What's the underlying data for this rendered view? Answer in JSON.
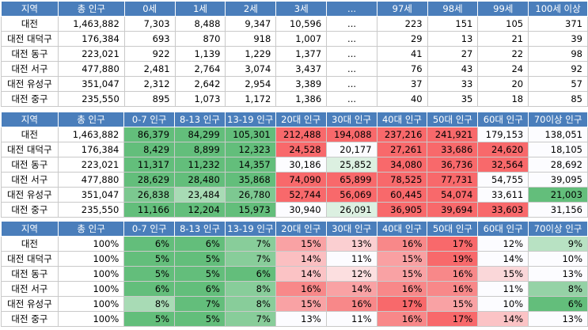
{
  "tables": [
    {
      "headers": [
        "지역",
        "총 인구",
        "0세",
        "1세",
        "2세",
        "3세",
        "...",
        "97세",
        "98세",
        "99세",
        "100세 이상"
      ],
      "rows": [
        [
          "대전",
          "1,463,882",
          "7,303",
          "8,488",
          "9,347",
          "10,596",
          "...",
          "223",
          "151",
          "105",
          "371"
        ],
        [
          "대전 대덕구",
          "176,384",
          "693",
          "870",
          "918",
          "1,007",
          "...",
          "29",
          "13",
          "21",
          "39"
        ],
        [
          "대전 동구",
          "223,021",
          "922",
          "1,139",
          "1,229",
          "1,377",
          "...",
          "41",
          "27",
          "22",
          "98"
        ],
        [
          "대전 서구",
          "477,880",
          "2,481",
          "2,764",
          "3,074",
          "3,437",
          "...",
          "76",
          "43",
          "24",
          "92"
        ],
        [
          "대전 유성구",
          "351,047",
          "2,312",
          "2,642",
          "2,954",
          "3,389",
          "...",
          "37",
          "33",
          "20",
          "57"
        ],
        [
          "대전 중구",
          "235,550",
          "895",
          "1,073",
          "1,172",
          "1,386",
          "...",
          "40",
          "35",
          "18",
          "85"
        ]
      ]
    },
    {
      "headers": [
        "지역",
        "총 인구",
        "0-7 인구",
        "8-13 인구",
        "13-19 인구",
        "20대 인구",
        "30대 인구",
        "40대 인구",
        "50대 인구",
        "60대 인구",
        "70이상 인구"
      ],
      "rows": [
        [
          "대전",
          "1,463,882",
          "86,379",
          "84,299",
          "105,301",
          "212,488",
          "194,088",
          "237,216",
          "241,921",
          "179,153",
          "138,051"
        ],
        [
          "대전 대덕구",
          "176,384",
          "8,429",
          "8,899",
          "12,323",
          "24,528",
          "20,177",
          "27,261",
          "33,686",
          "24,620",
          "18,105"
        ],
        [
          "대전 동구",
          "223,021",
          "11,317",
          "11,232",
          "14,357",
          "30,186",
          "25,852",
          "34,080",
          "36,736",
          "32,564",
          "28,692"
        ],
        [
          "대전 서구",
          "477,880",
          "28,629",
          "28,480",
          "35,868",
          "74,090",
          "65,899",
          "78,525",
          "77,731",
          "54,755",
          "39,095"
        ],
        [
          "대전 유성구",
          "351,047",
          "26,838",
          "23,484",
          "26,780",
          "52,744",
          "56,069",
          "60,445",
          "54,074",
          "33,611",
          "21,003"
        ],
        [
          "대전 중구",
          "235,550",
          "11,166",
          "12,204",
          "15,973",
          "30,940",
          "26,091",
          "36,905",
          "39,694",
          "33,603",
          "31,156"
        ]
      ],
      "colors": [
        [
          "#63be7b",
          "#63be7b",
          "#63be7b",
          "#f8696b",
          "#f8696b",
          "#f8696b",
          "#f8696b",
          "#fcfcff",
          "#fcfcff"
        ],
        [
          "#63be7b",
          "#63be7b",
          "#63be7b",
          "#f8696b",
          "#fcfcff",
          "#f8696b",
          "#f8696b",
          "#f8696b",
          "#fcfcff"
        ],
        [
          "#63be7b",
          "#63be7b",
          "#63be7b",
          "#fcfcff",
          "#dcf0e1",
          "#f8696b",
          "#f8696b",
          "#f8696b",
          "#fcfcff"
        ],
        [
          "#63be7b",
          "#63be7b",
          "#63be7b",
          "#f8696b",
          "#f8696b",
          "#f8696b",
          "#f8696b",
          "#fcfcff",
          "#fcfcff"
        ],
        [
          "#7cc890",
          "#a8dbb5",
          "#7dc891",
          "#f8696b",
          "#f8696b",
          "#f8696b",
          "#f8696b",
          "#fcfcff",
          "#63be7b"
        ],
        [
          "#63be7b",
          "#63be7b",
          "#63be7b",
          "#fcfcff",
          "#dcf0e1",
          "#f8696b",
          "#f8696b",
          "#f8696b",
          "#fcfcff"
        ]
      ]
    },
    {
      "headers": [
        "지역",
        "총 인구",
        "0-7 인구",
        "8-13 인구",
        "13-19 인구",
        "20대 인구",
        "30대 인구",
        "40대 인구",
        "50대 인구",
        "60대 인구",
        "70이상 인구"
      ],
      "rows": [
        [
          "대전",
          "100%",
          "6%",
          "6%",
          "7%",
          "15%",
          "13%",
          "16%",
          "17%",
          "12%",
          "9%"
        ],
        [
          "대전 대덕구",
          "100%",
          "5%",
          "5%",
          "7%",
          "14%",
          "11%",
          "15%",
          "19%",
          "14%",
          "10%"
        ],
        [
          "대전 동구",
          "100%",
          "5%",
          "5%",
          "6%",
          "14%",
          "12%",
          "15%",
          "16%",
          "15%",
          "13%"
        ],
        [
          "대전 서구",
          "100%",
          "6%",
          "6%",
          "8%",
          "16%",
          "14%",
          "16%",
          "16%",
          "11%",
          "8%"
        ],
        [
          "대전 유성구",
          "100%",
          "8%",
          "7%",
          "8%",
          "15%",
          "16%",
          "17%",
          "15%",
          "10%",
          "6%"
        ],
        [
          "대전 중구",
          "100%",
          "5%",
          "5%",
          "7%",
          "13%",
          "11%",
          "16%",
          "17%",
          "14%",
          "13%"
        ]
      ],
      "colors": [
        [
          "#63be7b",
          "#63be7b",
          "#88cd9a",
          "#f9a2a4",
          "#fbcfd1",
          "#f88889",
          "#f8696b",
          "#fcfcff",
          "#b8e2c3"
        ],
        [
          "#63be7b",
          "#63be7b",
          "#88cd9a",
          "#fbbfc1",
          "#fcfcff",
          "#f9a0a2",
          "#f8696b",
          "#fcfcff",
          "#fcfcff"
        ],
        [
          "#63be7b",
          "#63be7b",
          "#63be7b",
          "#fbc3c5",
          "#fcdfe0",
          "#f9a2a4",
          "#f88889",
          "#fad7d9",
          "#fcfcff"
        ],
        [
          "#63be7b",
          "#63be7b",
          "#88cd9a",
          "#f88889",
          "#f9a2a4",
          "#f88889",
          "#f88889",
          "#fcfcff",
          "#95d2a6"
        ],
        [
          "#a8dbb5",
          "#63be7b",
          "#88cd9a",
          "#f9a2a4",
          "#f88889",
          "#f8696b",
          "#f9a2a4",
          "#fcfcff",
          "#63be7b"
        ],
        [
          "#63be7b",
          "#63be7b",
          "#88cd9a",
          "#fcfcff",
          "#fcfcff",
          "#f88889",
          "#f8696b",
          "#fbc3c5",
          "#fcfcff"
        ]
      ]
    }
  ]
}
